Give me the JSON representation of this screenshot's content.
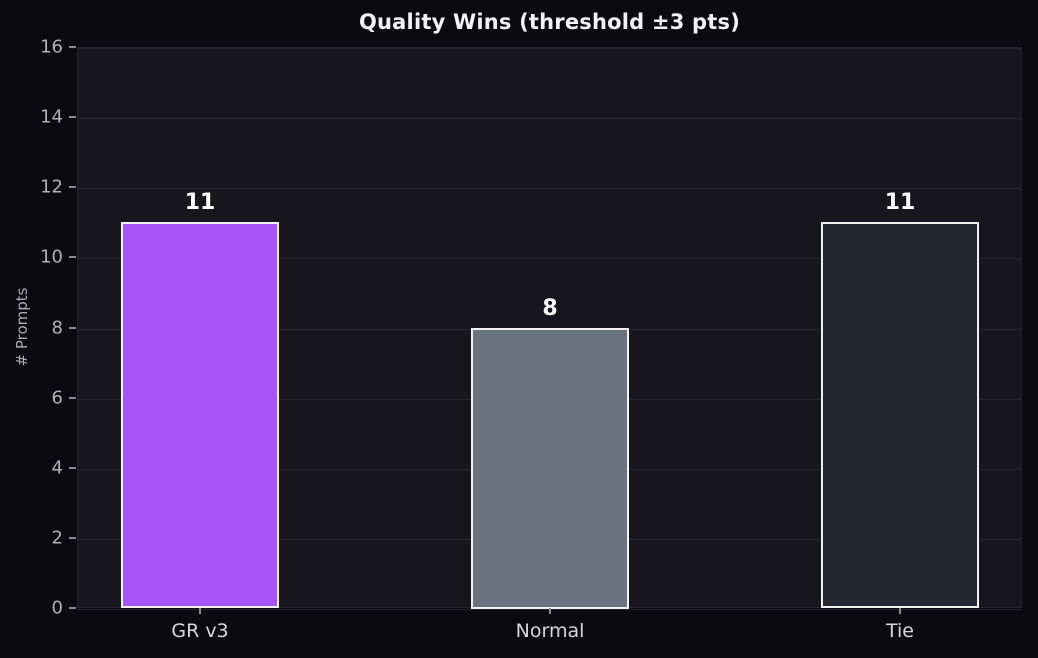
{
  "chart_data": {
    "type": "bar",
    "title": "Quality Wins (threshold ±3 pts)",
    "categories": [
      "GR v3",
      "Normal",
      "Tie"
    ],
    "values": [
      11,
      8,
      11
    ],
    "value_labels": [
      "11",
      "8",
      "11"
    ],
    "bar_colors": [
      "#a855f7",
      "#6b7280",
      "#262630"
    ],
    "bar_edge_color": "#f2f2f2",
    "xlabel": "",
    "ylabel": "# Prompts",
    "ylim": [
      0,
      16
    ],
    "yticks": [
      0,
      2,
      4,
      6,
      8,
      10,
      12,
      14,
      16
    ],
    "grid": "horizontal",
    "legend": "none"
  },
  "theme": {
    "figure_bg": "#0b0b0f",
    "axes_bg": "#16161c",
    "grid_color": "#25252e",
    "plot_border_color": "#24242d",
    "title_color": "#f2f2f4",
    "ytick_color": "#b0b1bc",
    "xtick_color": "#d8d8dc",
    "tick_mark_color": "#8a8b96",
    "axis_label_color": "#a9aab5",
    "value_label_color": "#ffffff"
  }
}
